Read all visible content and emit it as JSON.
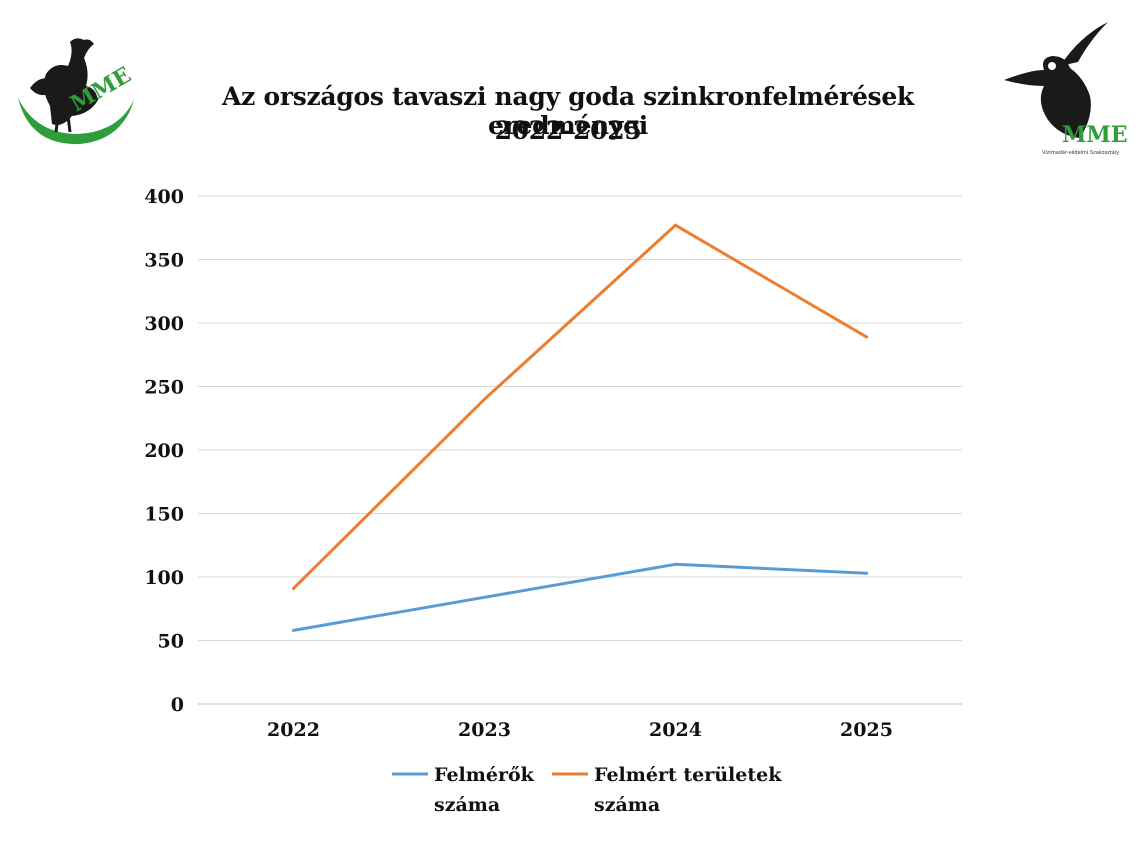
{
  "header": {
    "title_line1": "Az országos tavaszi nagy goda szinkronfelmérések eredményei",
    "title_line2": "2022-2025"
  },
  "logos": {
    "left": {
      "icon": "mme-bustard-logo",
      "text": "MME",
      "color": "#2e9d3a"
    },
    "right": {
      "icon": "mme-lapwing-logo",
      "text": "MME",
      "subtext": "Vízimadár-védelmi Szakosztály",
      "color": "#2e9d3a"
    }
  },
  "chart_data": {
    "type": "line",
    "x": [
      "2022",
      "2023",
      "2024",
      "2025"
    ],
    "ylim": [
      0,
      400
    ],
    "yticks": [
      0,
      50,
      100,
      150,
      200,
      250,
      300,
      350,
      400
    ],
    "grid": true,
    "legend_position": "bottom",
    "series": [
      {
        "name": "Felmérők száma",
        "values": [
          58,
          84,
          110,
          103
        ],
        "color": "#5b9bd5"
      },
      {
        "name": "Felmért területek száma",
        "values": [
          91,
          240,
          377,
          289
        ],
        "color": "#ed7d31"
      }
    ],
    "title": "Az országos tavaszi nagy goda szinkronfelmérések eredményei 2022-2025",
    "xlabel": "",
    "ylabel": ""
  }
}
